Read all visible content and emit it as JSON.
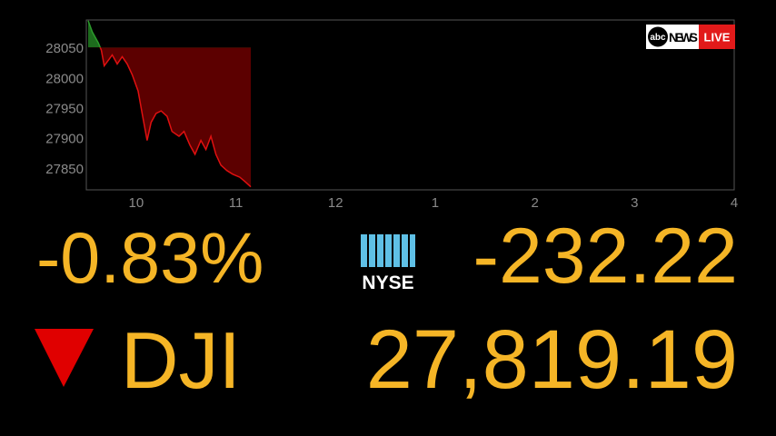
{
  "chart_data": {
    "type": "area",
    "x": [
      9.518,
      9.56,
      9.62,
      9.65,
      9.68,
      9.73,
      9.76,
      9.81,
      9.86,
      9.91,
      9.96,
      10.02,
      10.06,
      10.11,
      10.15,
      10.2,
      10.25,
      10.31,
      10.36,
      10.43,
      10.48,
      10.54,
      10.59,
      10.65,
      10.7,
      10.75,
      10.8,
      10.85,
      10.91,
      10.97,
      11.04,
      11.09,
      11.15
    ],
    "values": [
      28096,
      28077,
      28059,
      28047,
      28021,
      28032,
      28039,
      28024,
      28036,
      28024,
      28006,
      27979,
      27942,
      27897,
      27927,
      27942,
      27946,
      27937,
      27912,
      27904,
      27912,
      27889,
      27874,
      27897,
      27882,
      27904,
      27874,
      27856,
      27847,
      27841,
      27836,
      27829,
      27820
    ],
    "baseline": 28051.41,
    "up_color": "#2c9a2c",
    "down_color": "#e01010",
    "up_fill": "#1d6b1d",
    "down_fill": "#5c0000",
    "xlim": [
      9.5,
      16
    ],
    "xticks": [
      10,
      11,
      12,
      {
        "value": 13,
        "label": "1"
      },
      {
        "value": 14,
        "label": "2"
      },
      {
        "value": 15,
        "label": "3"
      },
      {
        "value": 16,
        "label": "4"
      }
    ],
    "ylim": [
      27815,
      28097
    ],
    "yticks": [
      27850,
      27900,
      27950,
      28000,
      28050
    ],
    "grid": false
  },
  "ticker": {
    "percent_change": "-0.83%",
    "exchange": "NYSE",
    "point_change": "-232.22",
    "symbol": "DJI",
    "price": "27,819.19"
  },
  "logo": {
    "brand": "abc",
    "network": "NEWS",
    "live": "LIVE"
  }
}
